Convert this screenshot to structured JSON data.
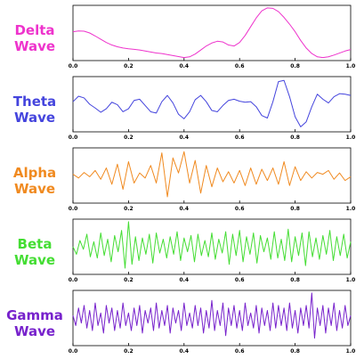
{
  "chart_data": [
    {
      "type": "line",
      "label_line1": "Delta",
      "label_line2": "Wave",
      "color": "#ee33cc",
      "xlim": [
        0,
        1
      ],
      "ylim": [
        -1.1,
        1.1
      ],
      "xticks": [
        "0.0",
        "0.2",
        "0.4",
        "0.6",
        "0.8",
        "1.0"
      ],
      "x": [
        0.0,
        0.02,
        0.04,
        0.06,
        0.08,
        0.1,
        0.12,
        0.14,
        0.16,
        0.18,
        0.2,
        0.22,
        0.24,
        0.26,
        0.28,
        0.3,
        0.32,
        0.34,
        0.36,
        0.38,
        0.4,
        0.42,
        0.44,
        0.46,
        0.48,
        0.5,
        0.52,
        0.54,
        0.56,
        0.58,
        0.6,
        0.62,
        0.64,
        0.66,
        0.68,
        0.7,
        0.72,
        0.74,
        0.76,
        0.78,
        0.8,
        0.82,
        0.84,
        0.86,
        0.88,
        0.9,
        0.92,
        0.94,
        0.96,
        0.98,
        1.0
      ],
      "y": [
        0.05,
        0.08,
        0.07,
        0.0,
        -0.12,
        -0.25,
        -0.38,
        -0.48,
        -0.55,
        -0.6,
        -0.63,
        -0.65,
        -0.68,
        -0.72,
        -0.76,
        -0.8,
        -0.82,
        -0.86,
        -0.9,
        -0.94,
        -0.98,
        -0.95,
        -0.84,
        -0.68,
        -0.52,
        -0.4,
        -0.33,
        -0.36,
        -0.48,
        -0.52,
        -0.38,
        -0.1,
        0.25,
        0.6,
        0.88,
        1.0,
        0.98,
        0.85,
        0.62,
        0.35,
        0.05,
        -0.3,
        -0.6,
        -0.82,
        -0.95,
        -0.98,
        -0.95,
        -0.88,
        -0.8,
        -0.72,
        -0.66
      ]
    },
    {
      "type": "line",
      "label_line1": "Theta",
      "label_line2": "Wave",
      "color": "#4444dd",
      "xlim": [
        0,
        1
      ],
      "ylim": [
        -1.1,
        1.1
      ],
      "xticks": [
        "0.0",
        "0.2",
        "0.4",
        "0.6",
        "0.8",
        "1.0"
      ],
      "x": [
        0.0,
        0.02,
        0.04,
        0.06,
        0.08,
        0.1,
        0.12,
        0.14,
        0.16,
        0.18,
        0.2,
        0.22,
        0.24,
        0.26,
        0.28,
        0.3,
        0.32,
        0.34,
        0.36,
        0.38,
        0.4,
        0.42,
        0.44,
        0.46,
        0.48,
        0.5,
        0.52,
        0.54,
        0.56,
        0.58,
        0.6,
        0.62,
        0.64,
        0.66,
        0.68,
        0.7,
        0.72,
        0.74,
        0.76,
        0.78,
        0.8,
        0.82,
        0.84,
        0.86,
        0.88,
        0.9,
        0.92,
        0.94,
        0.96,
        0.98,
        1.0
      ],
      "y": [
        0.1,
        0.32,
        0.25,
        0.0,
        -0.15,
        -0.32,
        -0.18,
        0.08,
        -0.02,
        -0.3,
        -0.18,
        0.15,
        0.2,
        -0.05,
        -0.3,
        -0.35,
        0.1,
        0.35,
        0.05,
        -0.4,
        -0.58,
        -0.3,
        0.18,
        0.35,
        0.1,
        -0.25,
        -0.3,
        -0.05,
        0.15,
        0.2,
        0.12,
        0.08,
        0.1,
        -0.1,
        -0.45,
        -0.55,
        0.1,
        0.9,
        0.95,
        0.3,
        -0.5,
        -0.9,
        -0.7,
        -0.1,
        0.4,
        0.2,
        0.05,
        0.3,
        0.42,
        0.4,
        0.35
      ]
    },
    {
      "type": "line",
      "label_line1": "Alpha",
      "label_line2": "Wave",
      "color": "#f08a20",
      "xlim": [
        0,
        1
      ],
      "ylim": [
        -1.1,
        1.1
      ],
      "xticks": [
        "0.0",
        "0.2",
        "0.4",
        "0.6",
        "0.8",
        "1.0"
      ],
      "x": [
        0.0,
        0.02,
        0.04,
        0.06,
        0.08,
        0.1,
        0.12,
        0.14,
        0.16,
        0.18,
        0.2,
        0.22,
        0.24,
        0.26,
        0.28,
        0.3,
        0.32,
        0.34,
        0.36,
        0.38,
        0.4,
        0.42,
        0.44,
        0.46,
        0.48,
        0.5,
        0.52,
        0.54,
        0.56,
        0.58,
        0.6,
        0.62,
        0.64,
        0.66,
        0.68,
        0.7,
        0.72,
        0.74,
        0.76,
        0.78,
        0.8,
        0.82,
        0.84,
        0.86,
        0.88,
        0.9,
        0.92,
        0.94,
        0.96,
        0.98,
        1.0
      ],
      "y": [
        0.05,
        -0.1,
        0.12,
        -0.05,
        0.2,
        -0.15,
        0.3,
        -0.35,
        0.45,
        -0.55,
        0.55,
        -0.3,
        0.1,
        -0.1,
        0.4,
        -0.3,
        0.9,
        -0.85,
        0.7,
        0.1,
        0.95,
        -0.3,
        0.6,
        -0.7,
        0.4,
        -0.45,
        0.3,
        -0.25,
        0.15,
        -0.3,
        0.2,
        -0.4,
        0.3,
        -0.35,
        0.25,
        -0.2,
        0.3,
        -0.35,
        0.55,
        -0.4,
        0.35,
        -0.2,
        0.15,
        -0.1,
        0.12,
        0.05,
        0.2,
        -0.15,
        0.1,
        -0.2,
        -0.05
      ]
    },
    {
      "type": "line",
      "label_line1": "Beta",
      "label_line2": "Wave",
      "color": "#44dd33",
      "xlim": [
        0,
        1
      ],
      "ylim": [
        -1.1,
        1.1
      ],
      "xticks": [
        "0.0",
        "0.2",
        "0.4",
        "0.6",
        "0.8",
        "1.0"
      ],
      "x": [
        0.0,
        0.0125,
        0.025,
        0.0375,
        0.05,
        0.0625,
        0.075,
        0.0875,
        0.1,
        0.1125,
        0.125,
        0.1375,
        0.15,
        0.1625,
        0.175,
        0.1875,
        0.2,
        0.2125,
        0.225,
        0.2375,
        0.25,
        0.2625,
        0.275,
        0.2875,
        0.3,
        0.3125,
        0.325,
        0.3375,
        0.35,
        0.3625,
        0.375,
        0.3875,
        0.4,
        0.4125,
        0.425,
        0.4375,
        0.45,
        0.4625,
        0.475,
        0.4875,
        0.5,
        0.5125,
        0.525,
        0.5375,
        0.55,
        0.5625,
        0.575,
        0.5875,
        0.6,
        0.6125,
        0.625,
        0.6375,
        0.65,
        0.6625,
        0.675,
        0.6875,
        0.7,
        0.7125,
        0.725,
        0.7375,
        0.75,
        0.7625,
        0.775,
        0.7875,
        0.8,
        0.8125,
        0.825,
        0.8375,
        0.85,
        0.8625,
        0.875,
        0.8875,
        0.9,
        0.9125,
        0.925,
        0.9375,
        0.95,
        0.9625,
        0.975,
        0.9875,
        1.0
      ],
      "y": [
        0.0,
        -0.3,
        0.25,
        -0.1,
        0.5,
        -0.4,
        0.2,
        -0.45,
        0.55,
        -0.35,
        0.3,
        -0.6,
        0.45,
        -0.2,
        0.65,
        -0.85,
        1.0,
        -0.7,
        0.4,
        -0.55,
        0.35,
        -0.3,
        0.5,
        -0.65,
        0.55,
        -0.25,
        0.3,
        -0.45,
        0.4,
        -0.3,
        0.6,
        -0.55,
        0.35,
        -0.2,
        0.45,
        -0.6,
        0.5,
        -0.35,
        0.25,
        -0.4,
        0.55,
        -0.5,
        0.3,
        -0.25,
        0.6,
        -0.7,
        0.5,
        -0.35,
        0.65,
        -0.6,
        0.4,
        -0.3,
        0.55,
        -0.65,
        0.45,
        -0.2,
        0.35,
        -0.5,
        0.6,
        -0.45,
        0.3,
        -0.55,
        0.7,
        -0.6,
        0.4,
        -0.35,
        0.55,
        -0.75,
        0.6,
        -0.4,
        0.35,
        -0.5,
        0.45,
        -0.3,
        0.65,
        -0.55,
        0.4,
        -0.35,
        0.5,
        -0.45,
        0.2
      ]
    },
    {
      "type": "line",
      "label_line1": "Gamma",
      "label_line2": "Wave",
      "color": "#7722cc",
      "xlim": [
        0,
        1
      ],
      "ylim": [
        -1.1,
        1.1
      ],
      "xticks": [
        "0.0",
        "0.2",
        "0.4",
        "0.6",
        "0.8",
        "1.0"
      ],
      "x": [
        0.0,
        0.01,
        0.02,
        0.03,
        0.04,
        0.05,
        0.06,
        0.07,
        0.08,
        0.09,
        0.1,
        0.11,
        0.12,
        0.13,
        0.14,
        0.15,
        0.16,
        0.17,
        0.18,
        0.19,
        0.2,
        0.21,
        0.22,
        0.23,
        0.24,
        0.25,
        0.26,
        0.27,
        0.28,
        0.29,
        0.3,
        0.31,
        0.32,
        0.33,
        0.34,
        0.35,
        0.36,
        0.37,
        0.38,
        0.39,
        0.4,
        0.41,
        0.42,
        0.43,
        0.44,
        0.45,
        0.46,
        0.47,
        0.48,
        0.49,
        0.5,
        0.51,
        0.52,
        0.53,
        0.54,
        0.55,
        0.56,
        0.57,
        0.58,
        0.59,
        0.6,
        0.61,
        0.62,
        0.63,
        0.64,
        0.65,
        0.66,
        0.67,
        0.68,
        0.69,
        0.7,
        0.71,
        0.72,
        0.73,
        0.74,
        0.75,
        0.76,
        0.77,
        0.78,
        0.79,
        0.8,
        0.81,
        0.82,
        0.83,
        0.84,
        0.85,
        0.86,
        0.87,
        0.88,
        0.89,
        0.9,
        0.91,
        0.92,
        0.93,
        0.94,
        0.95,
        0.96,
        0.97,
        0.98,
        0.99,
        1.0
      ],
      "y": [
        0.1,
        -0.3,
        0.4,
        -0.2,
        0.5,
        -0.4,
        0.3,
        -0.5,
        0.6,
        -0.3,
        0.2,
        -0.6,
        0.5,
        -0.2,
        0.4,
        -0.5,
        0.3,
        -0.4,
        0.6,
        -0.3,
        0.2,
        -0.5,
        0.4,
        -0.3,
        0.5,
        -0.6,
        0.3,
        -0.2,
        0.4,
        -0.5,
        0.6,
        -0.4,
        0.3,
        -0.3,
        0.5,
        -0.6,
        0.4,
        -0.2,
        0.3,
        -0.5,
        0.6,
        -0.3,
        0.2,
        -0.4,
        0.5,
        -0.3,
        0.4,
        -0.6,
        0.3,
        -0.4,
        0.7,
        -0.5,
        0.3,
        -0.3,
        0.6,
        -0.7,
        0.4,
        -0.3,
        0.5,
        -0.4,
        0.3,
        -0.5,
        0.6,
        -0.3,
        0.2,
        -0.4,
        0.5,
        -0.6,
        0.4,
        -0.3,
        0.3,
        -0.5,
        0.6,
        -0.4,
        0.5,
        -0.3,
        0.4,
        -0.5,
        0.6,
        -0.4,
        0.3,
        -0.6,
        0.4,
        -0.3,
        0.5,
        -0.4,
        1.0,
        -0.8,
        0.4,
        -0.3,
        0.5,
        -0.6,
        0.4,
        -0.3,
        0.6,
        -0.5,
        0.3,
        -0.4,
        0.5,
        -0.3,
        0.1
      ]
    }
  ]
}
